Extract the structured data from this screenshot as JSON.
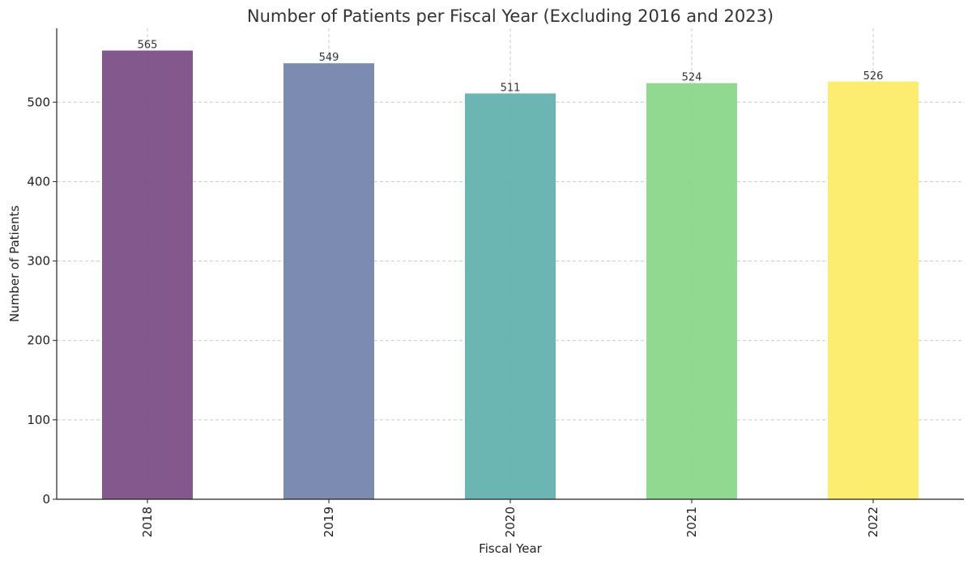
{
  "chart_data": {
    "type": "bar",
    "title": "Number of Patients per Fiscal Year (Excluding 2016 and 2023)",
    "xlabel": "Fiscal Year",
    "ylabel": "Number of Patients",
    "categories": [
      "2018",
      "2019",
      "2020",
      "2021",
      "2022"
    ],
    "values": [
      565,
      549,
      511,
      524,
      526
    ],
    "data_labels": [
      "565",
      "549",
      "511",
      "524",
      "526"
    ],
    "colors": [
      "#7b4f87",
      "#7585ae",
      "#63b1ae",
      "#8bd68b",
      "#fcec68"
    ],
    "ylim": [
      0,
      593
    ],
    "yticks": [
      0,
      100,
      200,
      300,
      400,
      500
    ],
    "ytick_labels": [
      "0",
      "100",
      "200",
      "300",
      "400",
      "500"
    ],
    "grid": true,
    "xtick_rotation": "vertical"
  }
}
